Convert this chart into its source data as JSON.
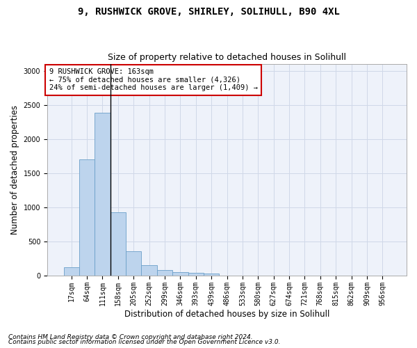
{
  "title1": "9, RUSHWICK GROVE, SHIRLEY, SOLIHULL, B90 4XL",
  "title2": "Size of property relative to detached houses in Solihull",
  "xlabel": "Distribution of detached houses by size in Solihull",
  "ylabel": "Number of detached properties",
  "footnote1": "Contains HM Land Registry data © Crown copyright and database right 2024.",
  "footnote2": "Contains public sector information licensed under the Open Government Licence v3.0.",
  "annotation_line1": "9 RUSHWICK GROVE: 163sqm",
  "annotation_line2": "← 75% of detached houses are smaller (4,326)",
  "annotation_line3": "24% of semi-detached houses are larger (1,409) →",
  "bar_labels": [
    "17sqm",
    "64sqm",
    "111sqm",
    "158sqm",
    "205sqm",
    "252sqm",
    "299sqm",
    "346sqm",
    "393sqm",
    "439sqm",
    "486sqm",
    "533sqm",
    "580sqm",
    "627sqm",
    "674sqm",
    "721sqm",
    "768sqm",
    "815sqm",
    "862sqm",
    "909sqm",
    "956sqm"
  ],
  "bar_values": [
    120,
    1700,
    2390,
    930,
    360,
    155,
    80,
    55,
    40,
    30,
    0,
    0,
    0,
    0,
    0,
    0,
    0,
    0,
    0,
    0,
    0
  ],
  "bar_color": "#bdd4ed",
  "bar_edge_color": "#6a9fc8",
  "vline_x": 2.5,
  "ylim": [
    0,
    3100
  ],
  "yticks": [
    0,
    500,
    1000,
    1500,
    2000,
    2500,
    3000
  ],
  "grid_color": "#d0d8e8",
  "background_color": "#eef2fa",
  "annotation_box_color": "#cc0000",
  "title_fontsize": 10,
  "subtitle_fontsize": 9,
  "axis_label_fontsize": 8.5,
  "tick_fontsize": 7,
  "footnote_fontsize": 6.5,
  "annotation_fontsize": 7.5
}
